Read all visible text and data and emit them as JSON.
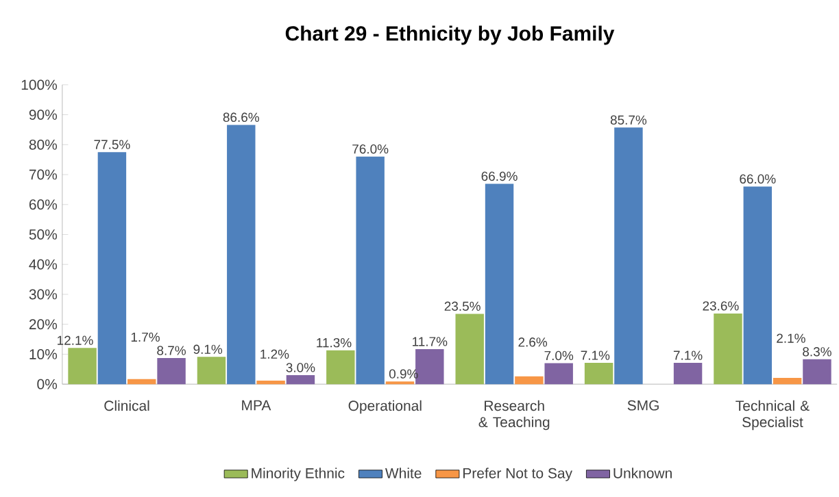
{
  "chart_data": {
    "type": "bar",
    "title": "Chart 29 - Ethnicity by Job Family",
    "categories": [
      "Clinical",
      "MPA",
      "Operational",
      "Research & Teaching",
      "SMG",
      "Technical & Specialist"
    ],
    "series": [
      {
        "name": "Minority Ethnic",
        "color": "#9bbb59",
        "values": [
          12.1,
          9.1,
          11.3,
          23.5,
          7.1,
          23.6
        ],
        "value_labels": [
          "12.1%",
          "9.1%",
          "11.3%",
          "23.5%",
          "7.1%",
          "23.6%"
        ]
      },
      {
        "name": "White",
        "color": "#4f81bd",
        "values": [
          77.5,
          86.6,
          76.0,
          66.9,
          85.7,
          66.0
        ],
        "value_labels": [
          "77.5%",
          "86.6%",
          "76.0%",
          "66.9%",
          "85.7%",
          "66.0%"
        ]
      },
      {
        "name": "Prefer Not to Say",
        "color": "#f79646",
        "values": [
          1.7,
          1.2,
          0.9,
          2.6,
          null,
          2.1
        ],
        "value_labels": [
          "1.7%",
          "1.2%",
          "0.9%",
          "2.6%",
          null,
          "2.1%"
        ]
      },
      {
        "name": "Unknown",
        "color": "#8064a2",
        "values": [
          8.7,
          3.0,
          11.7,
          7.0,
          7.1,
          8.3
        ],
        "value_labels": [
          "8.7%",
          "3.0%",
          "11.7%",
          "7.0%",
          "7.1%",
          "8.3%"
        ]
      }
    ],
    "ylim": [
      0,
      100
    ],
    "yticks": [
      {
        "value": 0,
        "label": "0%"
      },
      {
        "value": 10,
        "label": "10%"
      },
      {
        "value": 20,
        "label": "20%"
      },
      {
        "value": 30,
        "label": "30%"
      },
      {
        "value": 40,
        "label": "40%"
      },
      {
        "value": 50,
        "label": "50%"
      },
      {
        "value": 60,
        "label": "60%"
      },
      {
        "value": 70,
        "label": "70%"
      },
      {
        "value": 80,
        "label": "80%"
      },
      {
        "value": 90,
        "label": "90%"
      },
      {
        "value": 100,
        "label": "100%"
      }
    ],
    "legend": "bottom"
  }
}
